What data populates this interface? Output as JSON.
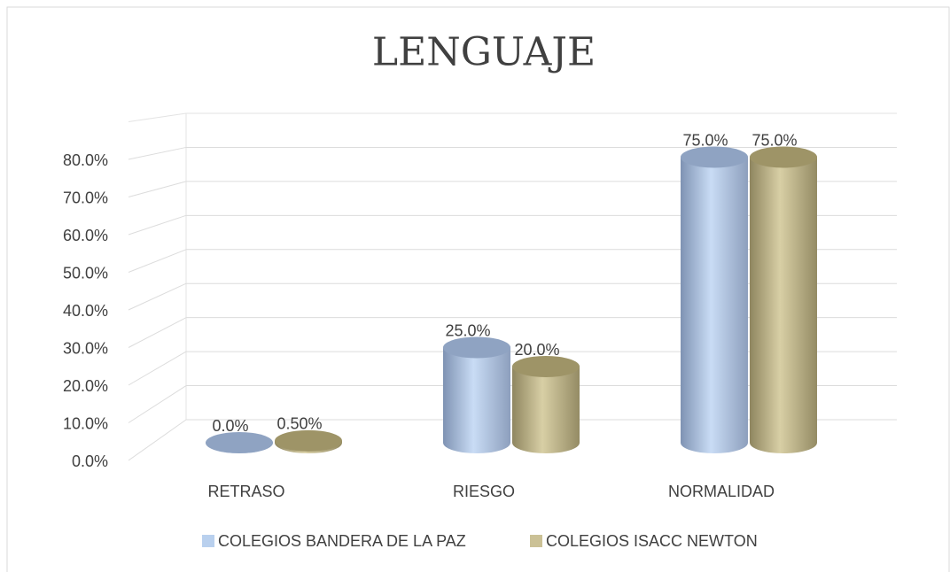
{
  "chart_data": {
    "type": "bar3d",
    "title": "LENGUAJE",
    "categories": [
      "RETRASO",
      "RIESGO",
      "NORMALIDAD"
    ],
    "series": [
      {
        "name": "COLEGIOS BANDERA DE LA PAZ",
        "color": "#b9d0ee",
        "values": [
          0,
          25,
          75
        ],
        "value_labels": [
          "0.0%",
          "25.0%",
          "75.0%"
        ]
      },
      {
        "name": "COLEGIOS ISACC NEWTON",
        "color": "#cbc196",
        "values": [
          0.5,
          20,
          75
        ],
        "value_labels": [
          "0.50%",
          "20.0%",
          "75.0%"
        ]
      }
    ],
    "ylim": [
      0,
      90
    ],
    "yticks": [
      {
        "value": 0,
        "label": "0.0%"
      },
      {
        "value": 10,
        "label": "10.0%"
      },
      {
        "value": 20,
        "label": "20.0%"
      },
      {
        "value": 30,
        "label": "30.0%"
      },
      {
        "value": 40,
        "label": "40.0%"
      },
      {
        "value": 50,
        "label": "50.0%"
      },
      {
        "value": 60,
        "label": "60.0%"
      },
      {
        "value": 70,
        "label": "70.0%"
      },
      {
        "value": 80,
        "label": "80.0%"
      }
    ],
    "grid": true,
    "legend": "bottom"
  }
}
